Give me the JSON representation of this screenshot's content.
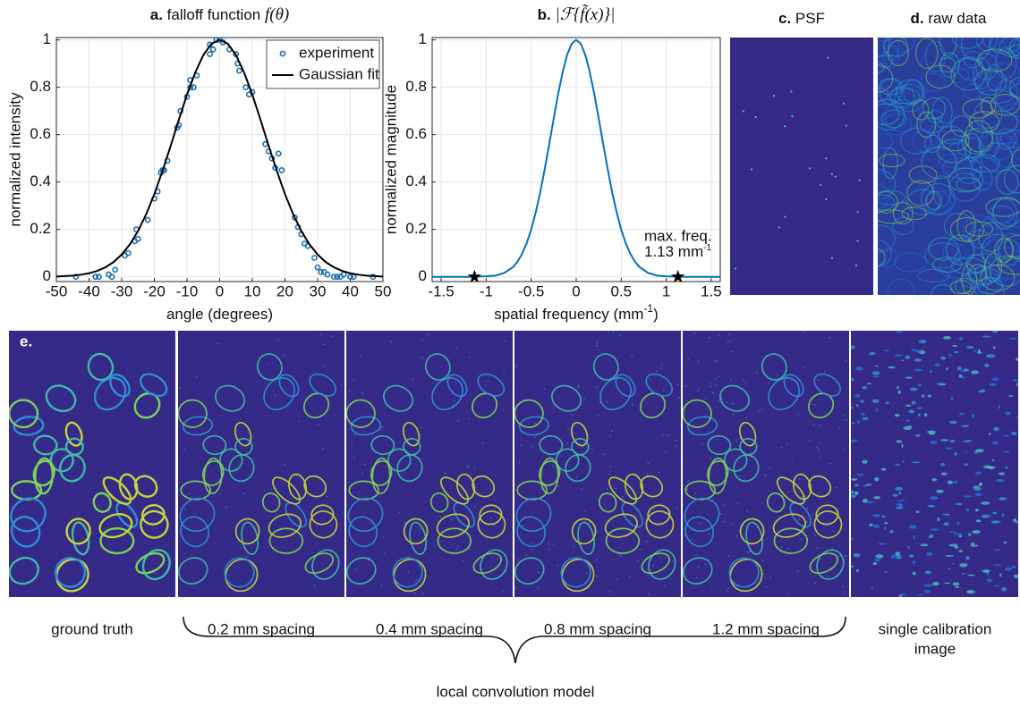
{
  "chart_data": [
    {
      "type": "scatter",
      "label": "a.",
      "title": "falloff function",
      "title_math": "f(θ)",
      "x_label": "angle (degrees)",
      "y_label": "normalized intensity",
      "xlim": [
        -50,
        50
      ],
      "xticks": [
        -50,
        -40,
        -30,
        -20,
        -10,
        0,
        10,
        20,
        30,
        40,
        50
      ],
      "ylim": [
        -0.02,
        1.01
      ],
      "yticks": [
        0,
        0.2,
        0.4,
        0.6,
        0.8,
        1
      ],
      "grid": true,
      "legend": "top-right",
      "series": [
        {
          "name": "experiment",
          "color": "#1f6fb2",
          "style": "markers",
          "x": [
            -44,
            -38,
            -37,
            -34,
            -33,
            -32,
            -29,
            -28,
            -26,
            -25,
            -25.5,
            -22,
            -20,
            -19,
            -18,
            -17.5,
            -17,
            -16,
            -13,
            -12.5,
            -12,
            -10,
            -9,
            -9,
            -8,
            -7,
            -3,
            -3,
            -2,
            -1,
            0,
            1,
            3,
            5,
            5.5,
            6,
            8,
            9,
            10,
            14,
            15,
            16,
            17,
            18,
            19,
            23,
            24,
            25,
            26,
            27,
            29,
            30,
            31,
            32,
            33,
            35,
            36,
            37,
            38,
            40,
            41,
            47
          ],
          "values": [
            0,
            0,
            0,
            0.01,
            0,
            0.03,
            0.09,
            0.1,
            0.15,
            0.16,
            0.2,
            0.24,
            0.33,
            0.36,
            0.44,
            0.45,
            0.45,
            0.49,
            0.63,
            0.64,
            0.7,
            0.76,
            0.83,
            0.8,
            0.8,
            0.85,
            0.94,
            0.98,
            0.96,
            1,
            1,
            0.99,
            0.96,
            0.94,
            0.9,
            0.87,
            0.8,
            0.77,
            0.78,
            0.56,
            0.53,
            0.5,
            0.46,
            0.52,
            0.45,
            0.25,
            0.21,
            0.18,
            0.14,
            0.13,
            0.08,
            0.04,
            0.02,
            0.02,
            0.01,
            0,
            0,
            0,
            0.01,
            0,
            0,
            0
          ]
        },
        {
          "name": "Gaussian fit",
          "color": "#000000",
          "style": "line",
          "x": [
            -50,
            -47.5,
            -45,
            -42.5,
            -40,
            -37.5,
            -35,
            -32.5,
            -30,
            -27.5,
            -25,
            -22.5,
            -20,
            -17.5,
            -15,
            -12.5,
            -10,
            -7.5,
            -5,
            -2.5,
            0,
            2.5,
            5,
            7.5,
            10,
            12.5,
            15,
            17.5,
            20,
            22.5,
            25,
            27.5,
            30,
            32.5,
            35,
            37.5,
            40,
            42.5,
            45,
            47.5,
            50
          ],
          "values": [
            0.001,
            0.003,
            0.005,
            0.009,
            0.015,
            0.025,
            0.04,
            0.062,
            0.094,
            0.137,
            0.193,
            0.264,
            0.349,
            0.447,
            0.553,
            0.663,
            0.769,
            0.862,
            0.936,
            0.984,
            1,
            0.984,
            0.936,
            0.862,
            0.769,
            0.663,
            0.553,
            0.447,
            0.349,
            0.264,
            0.193,
            0.137,
            0.094,
            0.062,
            0.04,
            0.025,
            0.015,
            0.009,
            0.005,
            0.003,
            0.001
          ]
        }
      ]
    },
    {
      "type": "line",
      "label": "b.",
      "title_math": "|ℱ{f̃(x)}|",
      "x_label": "spatial frequency (mm",
      "x_label_sup": "-1",
      "x_label_end": ")",
      "y_label": "normalized magnitude",
      "xlim": [
        -1.6,
        1.6
      ],
      "xticks": [
        -1.5,
        -1,
        -0.5,
        0,
        0.5,
        1,
        1.5
      ],
      "ylim": [
        -0.02,
        1.01
      ],
      "yticks": [
        0,
        0.2,
        0.4,
        0.6,
        0.8,
        1
      ],
      "grid": true,
      "series": [
        {
          "color": "#0072bd",
          "style": "line",
          "x": [
            -1.6,
            -1.2,
            -1,
            -0.9,
            -0.8,
            -0.7,
            -0.65,
            -0.6,
            -0.55,
            -0.5,
            -0.45,
            -0.4,
            -0.35,
            -0.3,
            -0.25,
            -0.2,
            -0.15,
            -0.1,
            -0.05,
            0,
            0.05,
            0.1,
            0.15,
            0.2,
            0.25,
            0.3,
            0.35,
            0.4,
            0.45,
            0.5,
            0.55,
            0.6,
            0.65,
            0.7,
            0.8,
            0.9,
            1,
            1.2,
            1.6
          ],
          "values": [
            0,
            0,
            0.002,
            0.005,
            0.016,
            0.042,
            0.065,
            0.098,
            0.142,
            0.199,
            0.271,
            0.356,
            0.454,
            0.56,
            0.668,
            0.773,
            0.865,
            0.938,
            0.984,
            1,
            0.984,
            0.938,
            0.865,
            0.773,
            0.668,
            0.56,
            0.454,
            0.356,
            0.271,
            0.199,
            0.142,
            0.098,
            0.065,
            0.042,
            0.016,
            0.005,
            0.002,
            0,
            0
          ]
        }
      ],
      "markers": {
        "color": "#000000",
        "x": [
          -1.13,
          1.13
        ],
        "values": [
          0,
          0
        ]
      },
      "annotation": {
        "line1": "max. freq.",
        "line2": "1.13 mm",
        "line2_sup": "-1"
      }
    }
  ],
  "panels": {
    "c": {
      "label": "c.",
      "title": "PSF"
    },
    "d": {
      "label": "d.",
      "title": "raw data"
    },
    "e": {
      "label": "e.",
      "captions": [
        "ground truth",
        "0.2 mm spacing",
        "0.4 mm spacing",
        "0.8 mm spacing",
        "1.2 mm spacing"
      ],
      "calibration_caption": [
        "single calibration",
        "image"
      ],
      "brace_label": "local convolution model"
    }
  }
}
